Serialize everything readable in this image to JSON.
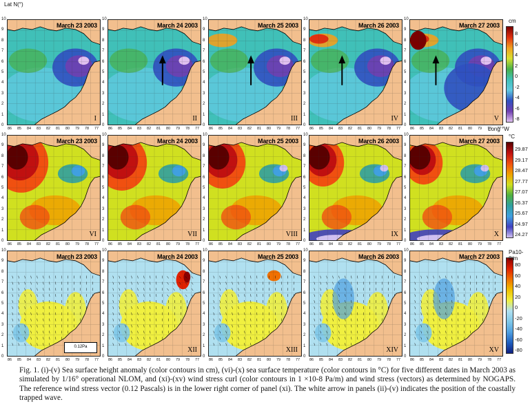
{
  "y_axis_label": "Lat N(°)",
  "x_axis_label": "Long °W",
  "y_ticks": [
    "10",
    "9",
    "8",
    "7",
    "6",
    "5",
    "4",
    "3",
    "2",
    "1",
    "0"
  ],
  "x_ticks": [
    "86",
    "85",
    "84",
    "83",
    "82",
    "81",
    "80",
    "79",
    "78",
    "77"
  ],
  "rows": [
    {
      "field": "ssh",
      "panels": [
        {
          "date": "March 23 2003",
          "label": "I"
        },
        {
          "date": "March 24 2003",
          "label": "II"
        },
        {
          "date": "March 25 2003",
          "label": "III"
        },
        {
          "date": "March 26 2003",
          "label": "IV"
        },
        {
          "date": "March 27 2003",
          "label": "V"
        }
      ],
      "colorbar": {
        "unit": "cm",
        "ticks": [
          "8",
          "6",
          "4",
          "2",
          "0",
          "-2",
          "-4",
          "-6",
          "-8"
        ]
      }
    },
    {
      "field": "sst",
      "panels": [
        {
          "date": "March 23 2003",
          "label": "VI"
        },
        {
          "date": "March 24 2003",
          "label": "VII"
        },
        {
          "date": "March 25 2003",
          "label": "VIII"
        },
        {
          "date": "March 26 2003",
          "label": "IX"
        },
        {
          "date": "March 27 2003",
          "label": "X"
        }
      ],
      "colorbar": {
        "unit": "°C",
        "ticks": [
          "29.87",
          "29.17",
          "28.47",
          "27.77",
          "27.07",
          "26.37",
          "25.67",
          "24.97",
          "24.27"
        ]
      }
    },
    {
      "field": "wind",
      "panels": [
        {
          "date": "March 23 2003",
          "label": "XI"
        },
        {
          "date": "March 24 2003",
          "label": "XII"
        },
        {
          "date": "March 25 2003",
          "label": "XIII"
        },
        {
          "date": "March 26 2003",
          "label": "XIV"
        },
        {
          "date": "March 27 2003",
          "label": "XV"
        }
      ],
      "colorbar": {
        "unit": "Pa10-8/m",
        "ticks": [
          "80",
          "60",
          "40",
          "20",
          "0",
          "-20",
          "-40",
          "-60",
          "-80"
        ]
      }
    }
  ],
  "reference_vector": "0.12Pa",
  "caption": "Fig. 1. (i)-(v) Sea surface height anomaly (color contours in cm), (vi)-(x) sea surface temperature (color contours in °C) for five different dates in March 2003 as simulated by 1/16° operational NLOM, and (xi)-(xv) wind stress curl (color contours in 1 ×10-8 Pa/m) and wind stress (vectors) as determined by NOGAPS. The reference wind stress vector (0.12 Pascals) is in the lower right corner of panel (xi). The white arrow in panels (ii)-(v) indicates the position of the coastally trapped wave.",
  "colors": {
    "land": "#f2bf8e",
    "ssh_scale": [
      "#7a0000",
      "#e03010",
      "#f0a020",
      "#d8e030",
      "#48b048",
      "#40c0b8",
      "#60c8e0",
      "#3050c0",
      "#7040b0",
      "#e0c0f0"
    ],
    "sst_scale": [
      "#5a0000",
      "#c01010",
      "#f05010",
      "#f0a000",
      "#d0e020",
      "#50b040",
      "#30a0a0",
      "#40a0e0",
      "#4040c0",
      "#d0c0f0"
    ],
    "wind_scale": [
      "#8a0000",
      "#e02000",
      "#f07000",
      "#f0c000",
      "#f0f040",
      "#b0e0f0",
      "#80c8e8",
      "#50a0e0",
      "#2060c0",
      "#102080"
    ]
  }
}
